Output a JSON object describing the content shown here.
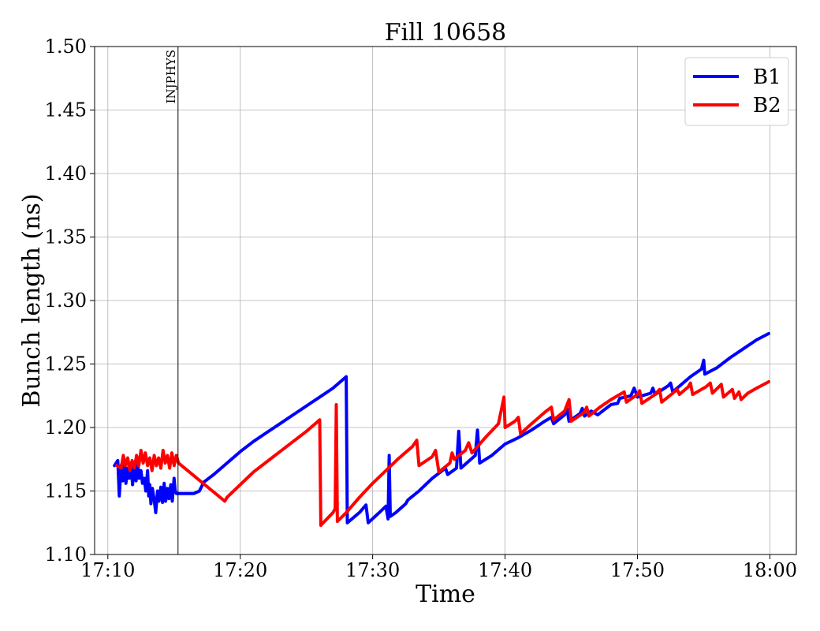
{
  "chart_data": {
    "type": "line",
    "title": "Fill 10658",
    "xlabel": "Time",
    "ylabel": "Bunch length (ns)",
    "xlim": [
      "17:09",
      "18:02"
    ],
    "ylim": [
      1.1,
      1.5
    ],
    "grid": true,
    "legend_position": "top-right",
    "x_ticks": [
      "17:10",
      "17:20",
      "17:30",
      "17:40",
      "17:50",
      "18:00"
    ],
    "y_ticks": [
      "1.10",
      "1.15",
      "1.20",
      "1.25",
      "1.30",
      "1.35",
      "1.40",
      "1.45",
      "1.50"
    ],
    "annotations": [
      {
        "text": "INJPHYS",
        "time": "17:15:18"
      }
    ],
    "series": [
      {
        "name": "B1",
        "color": "#0000ff",
        "points": [
          [
            "17:10:30",
            1.17
          ],
          [
            "17:10:45",
            1.174
          ],
          [
            "17:10:52",
            1.146
          ],
          [
            "17:11:00",
            1.17
          ],
          [
            "17:11:08",
            1.158
          ],
          [
            "17:11:15",
            1.172
          ],
          [
            "17:11:22",
            1.156
          ],
          [
            "17:11:30",
            1.168
          ],
          [
            "17:11:37",
            1.16
          ],
          [
            "17:11:45",
            1.172
          ],
          [
            "17:11:52",
            1.155
          ],
          [
            "17:12:00",
            1.168
          ],
          [
            "17:12:08",
            1.158
          ],
          [
            "17:12:15",
            1.172
          ],
          [
            "17:12:22",
            1.16
          ],
          [
            "17:12:30",
            1.166
          ],
          [
            "17:12:37",
            1.156
          ],
          [
            "17:12:45",
            1.16
          ],
          [
            "17:12:52",
            1.15
          ],
          [
            "17:13:00",
            1.166
          ],
          [
            "17:13:05",
            1.146
          ],
          [
            "17:13:10",
            1.155
          ],
          [
            "17:13:15",
            1.14
          ],
          [
            "17:13:22",
            1.152
          ],
          [
            "17:13:30",
            1.143
          ],
          [
            "17:13:37",
            1.133
          ],
          [
            "17:13:45",
            1.15
          ],
          [
            "17:13:52",
            1.142
          ],
          [
            "17:14:00",
            1.153
          ],
          [
            "17:14:08",
            1.141
          ],
          [
            "17:14:15",
            1.156
          ],
          [
            "17:14:22",
            1.142
          ],
          [
            "17:14:30",
            1.152
          ],
          [
            "17:14:37",
            1.144
          ],
          [
            "17:14:45",
            1.155
          ],
          [
            "17:14:52",
            1.142
          ],
          [
            "17:15:00",
            1.16
          ],
          [
            "17:15:05",
            1.15
          ],
          [
            "17:15:10",
            1.148
          ],
          [
            "17:15:30",
            1.148
          ],
          [
            "17:16:00",
            1.148
          ],
          [
            "17:16:30",
            1.148
          ],
          [
            "17:16:55",
            1.15
          ],
          [
            "17:17:15",
            1.157
          ],
          [
            "17:18:00",
            1.163
          ],
          [
            "17:19:00",
            1.172
          ],
          [
            "17:20:00",
            1.181
          ],
          [
            "17:21:00",
            1.189
          ],
          [
            "17:22:00",
            1.196
          ],
          [
            "17:23:00",
            1.203
          ],
          [
            "17:24:00",
            1.21
          ],
          [
            "17:25:00",
            1.217
          ],
          [
            "17:26:00",
            1.224
          ],
          [
            "17:27:00",
            1.231
          ],
          [
            "17:28:00",
            1.24
          ],
          [
            "17:28:05",
            1.125
          ],
          [
            "17:29:00",
            1.133
          ],
          [
            "17:29:30",
            1.139
          ],
          [
            "17:29:40",
            1.125
          ],
          [
            "17:30:30",
            1.133
          ],
          [
            "17:31:00",
            1.138
          ],
          [
            "17:31:10",
            1.128
          ],
          [
            "17:31:15",
            1.178
          ],
          [
            "17:31:20",
            1.13
          ],
          [
            "17:31:45",
            1.133
          ],
          [
            "17:32:30",
            1.14
          ],
          [
            "17:32:40",
            1.143
          ],
          [
            "17:33:30",
            1.15
          ],
          [
            "17:34:30",
            1.16
          ],
          [
            "17:35:30",
            1.168
          ],
          [
            "17:35:40",
            1.163
          ],
          [
            "17:36:20",
            1.168
          ],
          [
            "17:36:30",
            1.197
          ],
          [
            "17:36:40",
            1.168
          ],
          [
            "17:37:45",
            1.178
          ],
          [
            "17:37:55",
            1.198
          ],
          [
            "17:38:05",
            1.172
          ],
          [
            "17:39:00",
            1.178
          ],
          [
            "17:40:00",
            1.187
          ],
          [
            "17:41:00",
            1.192
          ],
          [
            "17:42:00",
            1.198
          ],
          [
            "17:43:00",
            1.205
          ],
          [
            "17:43:30",
            1.208
          ],
          [
            "17:43:40",
            1.203
          ],
          [
            "17:44:30",
            1.21
          ],
          [
            "17:44:40",
            1.215
          ],
          [
            "17:44:50",
            1.205
          ],
          [
            "17:45:40",
            1.211
          ],
          [
            "17:45:50",
            1.215
          ],
          [
            "17:46:00",
            1.209
          ],
          [
            "17:46:30",
            1.213
          ],
          [
            "17:47:00",
            1.21
          ],
          [
            "17:48:00",
            1.218
          ],
          [
            "17:48:30",
            1.219
          ],
          [
            "17:48:40",
            1.223
          ],
          [
            "17:49:30",
            1.225
          ],
          [
            "17:49:45",
            1.231
          ],
          [
            "17:50:00",
            1.224
          ],
          [
            "17:51:00",
            1.227
          ],
          [
            "17:51:10",
            1.231
          ],
          [
            "17:51:20",
            1.226
          ],
          [
            "17:52:20",
            1.233
          ],
          [
            "17:52:30",
            1.235
          ],
          [
            "17:52:40",
            1.228
          ],
          [
            "17:53:40",
            1.237
          ],
          [
            "17:54:00",
            1.24
          ],
          [
            "17:54:50",
            1.246
          ],
          [
            "17:55:00",
            1.253
          ],
          [
            "17:55:05",
            1.242
          ],
          [
            "17:56:00",
            1.247
          ],
          [
            "17:57:00",
            1.255
          ],
          [
            "17:58:00",
            1.262
          ],
          [
            "17:59:00",
            1.269
          ],
          [
            "17:59:55",
            1.274
          ]
        ]
      },
      {
        "name": "B2",
        "color": "#ff0000",
        "points": [
          [
            "17:10:40",
            1.17
          ],
          [
            "17:11:00",
            1.168
          ],
          [
            "17:11:10",
            1.178
          ],
          [
            "17:11:20",
            1.17
          ],
          [
            "17:11:30",
            1.176
          ],
          [
            "17:11:40",
            1.166
          ],
          [
            "17:11:50",
            1.174
          ],
          [
            "17:12:00",
            1.168
          ],
          [
            "17:12:10",
            1.178
          ],
          [
            "17:12:20",
            1.17
          ],
          [
            "17:12:30",
            1.182
          ],
          [
            "17:12:40",
            1.172
          ],
          [
            "17:12:50",
            1.18
          ],
          [
            "17:13:00",
            1.17
          ],
          [
            "17:13:10",
            1.176
          ],
          [
            "17:13:20",
            1.166
          ],
          [
            "17:13:30",
            1.178
          ],
          [
            "17:13:40",
            1.17
          ],
          [
            "17:13:50",
            1.176
          ],
          [
            "17:14:00",
            1.168
          ],
          [
            "17:14:10",
            1.182
          ],
          [
            "17:14:20",
            1.172
          ],
          [
            "17:14:30",
            1.178
          ],
          [
            "17:14:40",
            1.168
          ],
          [
            "17:14:50",
            1.18
          ],
          [
            "17:15:00",
            1.17
          ],
          [
            "17:15:10",
            1.178
          ],
          [
            "17:15:20",
            1.172
          ],
          [
            "17:18:50",
            1.142
          ],
          [
            "17:19:00",
            1.145
          ],
          [
            "17:20:00",
            1.155
          ],
          [
            "17:21:00",
            1.165
          ],
          [
            "17:22:00",
            1.173
          ],
          [
            "17:23:00",
            1.181
          ],
          [
            "17:24:00",
            1.189
          ],
          [
            "17:25:00",
            1.197
          ],
          [
            "17:26:00",
            1.206
          ],
          [
            "17:26:05",
            1.123
          ],
          [
            "17:27:00",
            1.133
          ],
          [
            "17:27:10",
            1.136
          ],
          [
            "17:27:15",
            1.218
          ],
          [
            "17:27:20",
            1.126
          ],
          [
            "17:28:00",
            1.133
          ],
          [
            "17:29:00",
            1.145
          ],
          [
            "17:30:00",
            1.156
          ],
          [
            "17:31:00",
            1.166
          ],
          [
            "17:32:00",
            1.176
          ],
          [
            "17:33:00",
            1.185
          ],
          [
            "17:33:20",
            1.19
          ],
          [
            "17:33:30",
            1.17
          ],
          [
            "17:34:30",
            1.177
          ],
          [
            "17:34:45",
            1.182
          ],
          [
            "17:35:00",
            1.165
          ],
          [
            "17:35:50",
            1.172
          ],
          [
            "17:36:00",
            1.18
          ],
          [
            "17:36:10",
            1.175
          ],
          [
            "17:37:00",
            1.182
          ],
          [
            "17:37:15",
            1.188
          ],
          [
            "17:37:30",
            1.18
          ],
          [
            "17:38:30",
            1.192
          ],
          [
            "17:39:30",
            1.203
          ],
          [
            "17:39:55",
            1.224
          ],
          [
            "17:40:00",
            1.2
          ],
          [
            "17:40:45",
            1.205
          ],
          [
            "17:41:00",
            1.208
          ],
          [
            "17:41:10",
            1.195
          ],
          [
            "17:42:00",
            1.203
          ],
          [
            "17:43:00",
            1.212
          ],
          [
            "17:43:30",
            1.216
          ],
          [
            "17:43:40",
            1.206
          ],
          [
            "17:44:30",
            1.213
          ],
          [
            "17:44:50",
            1.222
          ],
          [
            "17:45:00",
            1.205
          ],
          [
            "17:46:00",
            1.212
          ],
          [
            "17:46:10",
            1.216
          ],
          [
            "17:46:20",
            1.209
          ],
          [
            "17:47:10",
            1.216
          ],
          [
            "17:48:00",
            1.222
          ],
          [
            "17:48:40",
            1.226
          ],
          [
            "17:49:00",
            1.228
          ],
          [
            "17:49:10",
            1.22
          ],
          [
            "17:50:00",
            1.226
          ],
          [
            "17:50:10",
            1.229
          ],
          [
            "17:50:20",
            1.219
          ],
          [
            "17:51:20",
            1.226
          ],
          [
            "17:51:40",
            1.23
          ],
          [
            "17:51:50",
            1.22
          ],
          [
            "17:52:40",
            1.227
          ],
          [
            "17:53:00",
            1.23
          ],
          [
            "17:53:10",
            1.226
          ],
          [
            "17:53:50",
            1.232
          ],
          [
            "17:54:00",
            1.235
          ],
          [
            "17:54:10",
            1.226
          ],
          [
            "17:55:10",
            1.232
          ],
          [
            "17:55:30",
            1.235
          ],
          [
            "17:55:40",
            1.227
          ],
          [
            "17:56:20",
            1.234
          ],
          [
            "17:56:30",
            1.224
          ],
          [
            "17:57:10",
            1.23
          ],
          [
            "17:57:20",
            1.223
          ],
          [
            "17:57:40",
            1.228
          ],
          [
            "17:57:50",
            1.222
          ],
          [
            "17:58:20",
            1.227
          ],
          [
            "17:59:00",
            1.231
          ],
          [
            "17:59:55",
            1.236
          ]
        ]
      }
    ]
  }
}
